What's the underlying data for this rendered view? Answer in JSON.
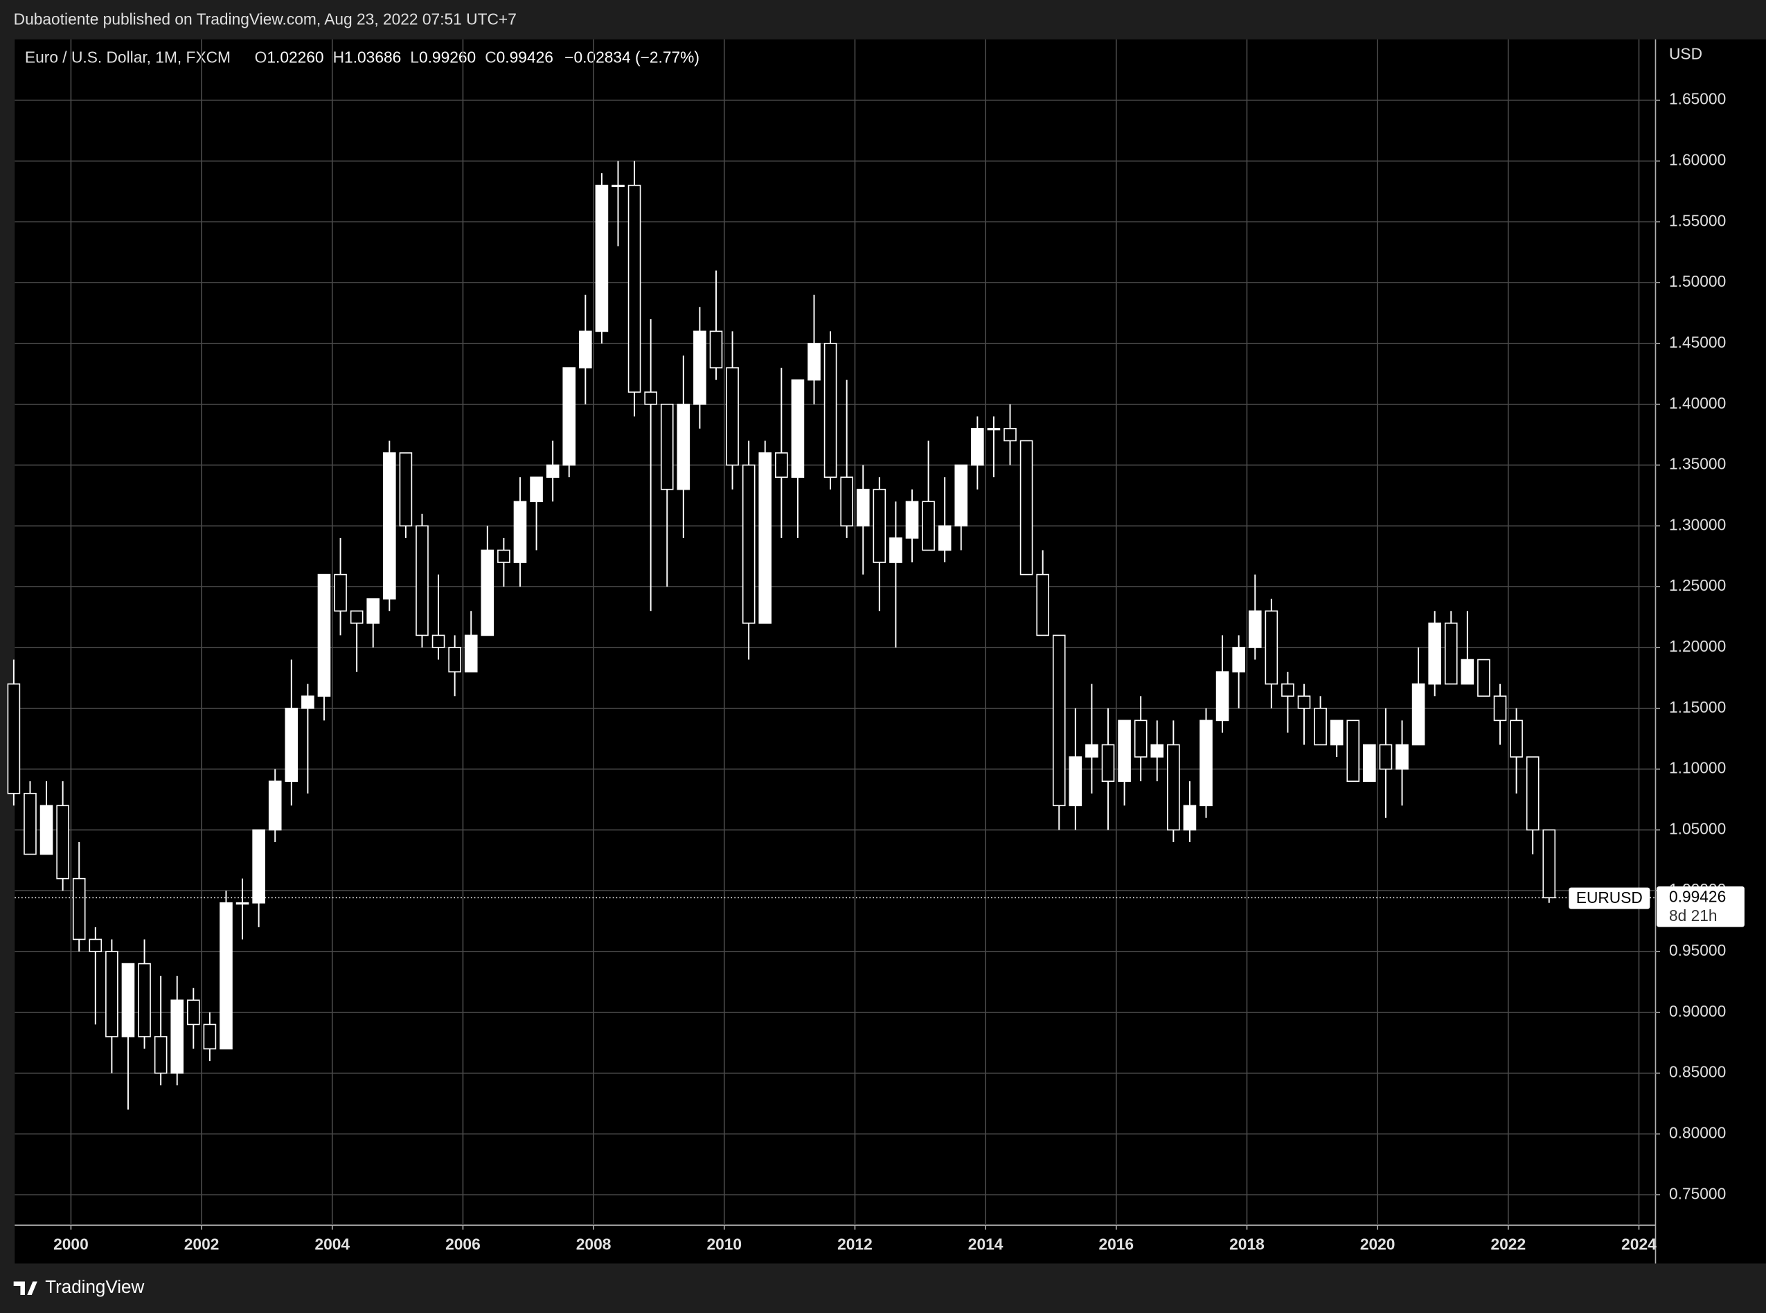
{
  "header": {
    "publisher": "Dubaotiente published on TradingView.com, Aug 23, 2022 07:51 UTC+7",
    "symbol": "Euro / U.S. Dollar, 1M, FXCM",
    "ohlc": [
      {
        "label": "O",
        "value": "1.02260"
      },
      {
        "label": "H",
        "value": "1.03686"
      },
      {
        "label": "L",
        "value": "0.99260"
      },
      {
        "label": "C",
        "value": "0.99426"
      }
    ],
    "change": "−0.02834 (−2.77%)"
  },
  "footer": {
    "brand": "TradingView"
  },
  "chart_data": {
    "type": "candlestick",
    "currency": "USD",
    "symbol": "EURUSD",
    "countdown": "8d 21h",
    "last_price": 0.99426,
    "color": "#ffffff",
    "grid": true,
    "xlim": [
      1999.14,
      2024.22
    ],
    "xticks": [
      2000,
      2002,
      2004,
      2006,
      2008,
      2010,
      2012,
      2014,
      2016,
      2018,
      2020,
      2022,
      2024
    ],
    "ylim": [
      0.725,
      1.7
    ],
    "yticks": [
      {
        "value": 0.75,
        "label": "0.75000"
      },
      {
        "value": 0.8,
        "label": "0.80000"
      },
      {
        "value": 0.85,
        "label": "0.85000"
      },
      {
        "value": 0.9,
        "label": "0.90000"
      },
      {
        "value": 0.95,
        "label": "0.95000"
      },
      {
        "value": 1.0,
        "label": "1.00000"
      },
      {
        "value": 1.05,
        "label": "1.05000"
      },
      {
        "value": 1.1,
        "label": "1.10000"
      },
      {
        "value": 1.15,
        "label": "1.15000"
      },
      {
        "value": 1.2,
        "label": "1.20000"
      },
      {
        "value": 1.25,
        "label": "1.25000"
      },
      {
        "value": 1.3,
        "label": "1.30000"
      },
      {
        "value": 1.35,
        "label": "1.35000"
      },
      {
        "value": 1.4,
        "label": "1.40000"
      },
      {
        "value": 1.45,
        "label": "1.45000"
      },
      {
        "value": 1.5,
        "label": "1.50000"
      },
      {
        "value": 1.55,
        "label": "1.55000"
      },
      {
        "value": 1.6,
        "label": "1.60000"
      },
      {
        "value": 1.65,
        "label": "1.65000"
      }
    ],
    "x": [
      1999.125,
      1999.375,
      1999.625,
      1999.875,
      2000.125,
      2000.375,
      2000.625,
      2000.875,
      2001.125,
      2001.375,
      2001.625,
      2001.875,
      2002.125,
      2002.375,
      2002.625,
      2002.875,
      2003.125,
      2003.375,
      2003.625,
      2003.875,
      2004.125,
      2004.375,
      2004.625,
      2004.875,
      2005.125,
      2005.375,
      2005.625,
      2005.875,
      2006.125,
      2006.375,
      2006.625,
      2006.875,
      2007.125,
      2007.375,
      2007.625,
      2007.875,
      2008.125,
      2008.375,
      2008.625,
      2008.875,
      2009.125,
      2009.375,
      2009.625,
      2009.875,
      2010.125,
      2010.375,
      2010.625,
      2010.875,
      2011.125,
      2011.375,
      2011.625,
      2011.875,
      2012.125,
      2012.375,
      2012.625,
      2012.875,
      2013.125,
      2013.375,
      2013.625,
      2013.875,
      2014.125,
      2014.375,
      2014.625,
      2014.875,
      2015.125,
      2015.375,
      2015.625,
      2015.875,
      2016.125,
      2016.375,
      2016.625,
      2016.875,
      2017.125,
      2017.375,
      2017.625,
      2017.875,
      2018.125,
      2018.375,
      2018.625,
      2018.875,
      2019.125,
      2019.375,
      2019.625,
      2019.875,
      2020.125,
      2020.375,
      2020.625,
      2020.875,
      2021.125,
      2021.375,
      2021.625,
      2021.875,
      2022.125,
      2022.375,
      2022.625
    ],
    "open": [
      1.17,
      1.08,
      1.03,
      1.07,
      1.01,
      0.96,
      0.95,
      0.88,
      0.94,
      0.88,
      0.85,
      0.91,
      0.89,
      0.87,
      0.99,
      0.99,
      1.05,
      1.09,
      1.15,
      1.16,
      1.26,
      1.23,
      1.22,
      1.24,
      1.36,
      1.3,
      1.21,
      1.2,
      1.18,
      1.21,
      1.28,
      1.27,
      1.32,
      1.34,
      1.35,
      1.43,
      1.46,
      1.58,
      1.58,
      1.41,
      1.4,
      1.33,
      1.4,
      1.46,
      1.43,
      1.35,
      1.22,
      1.36,
      1.34,
      1.42,
      1.45,
      1.34,
      1.3,
      1.33,
      1.27,
      1.29,
      1.32,
      1.28,
      1.3,
      1.35,
      1.38,
      1.38,
      1.37,
      1.26,
      1.21,
      1.07,
      1.11,
      1.12,
      1.09,
      1.14,
      1.11,
      1.12,
      1.05,
      1.07,
      1.14,
      1.18,
      1.2,
      1.23,
      1.17,
      1.16,
      1.15,
      1.12,
      1.14,
      1.09,
      1.12,
      1.1,
      1.12,
      1.17,
      1.22,
      1.17,
      1.19,
      1.16,
      1.14,
      1.11,
      1.05
    ],
    "high": [
      1.19,
      1.09,
      1.09,
      1.09,
      1.04,
      0.97,
      0.96,
      0.94,
      0.96,
      0.93,
      0.93,
      0.92,
      0.9,
      1.0,
      1.01,
      1.05,
      1.1,
      1.19,
      1.17,
      1.26,
      1.29,
      1.23,
      1.24,
      1.37,
      1.36,
      1.31,
      1.26,
      1.21,
      1.23,
      1.3,
      1.29,
      1.34,
      1.34,
      1.37,
      1.43,
      1.49,
      1.59,
      1.6,
      1.6,
      1.47,
      1.4,
      1.44,
      1.48,
      1.51,
      1.46,
      1.37,
      1.37,
      1.43,
      1.42,
      1.49,
      1.46,
      1.42,
      1.35,
      1.34,
      1.32,
      1.33,
      1.37,
      1.34,
      1.35,
      1.39,
      1.39,
      1.4,
      1.37,
      1.28,
      1.21,
      1.15,
      1.17,
      1.15,
      1.14,
      1.16,
      1.14,
      1.14,
      1.09,
      1.15,
      1.21,
      1.21,
      1.26,
      1.24,
      1.18,
      1.17,
      1.16,
      1.14,
      1.14,
      1.12,
      1.15,
      1.14,
      1.2,
      1.23,
      1.23,
      1.23,
      1.19,
      1.17,
      1.15,
      1.11,
      1.05
    ],
    "low": [
      1.07,
      1.03,
      1.03,
      1.0,
      0.95,
      0.89,
      0.85,
      0.82,
      0.87,
      0.84,
      0.84,
      0.87,
      0.86,
      0.87,
      0.96,
      0.97,
      1.04,
      1.07,
      1.08,
      1.14,
      1.21,
      1.18,
      1.2,
      1.23,
      1.29,
      1.2,
      1.19,
      1.16,
      1.18,
      1.21,
      1.25,
      1.25,
      1.28,
      1.32,
      1.34,
      1.4,
      1.45,
      1.53,
      1.39,
      1.23,
      1.25,
      1.29,
      1.38,
      1.42,
      1.33,
      1.19,
      1.22,
      1.29,
      1.29,
      1.4,
      1.33,
      1.29,
      1.26,
      1.23,
      1.2,
      1.27,
      1.28,
      1.27,
      1.28,
      1.33,
      1.34,
      1.35,
      1.26,
      1.21,
      1.05,
      1.05,
      1.08,
      1.05,
      1.07,
      1.09,
      1.09,
      1.04,
      1.04,
      1.06,
      1.13,
      1.15,
      1.19,
      1.15,
      1.13,
      1.12,
      1.12,
      1.11,
      1.09,
      1.09,
      1.06,
      1.07,
      1.12,
      1.16,
      1.17,
      1.17,
      1.16,
      1.12,
      1.08,
      1.03,
      0.99
    ],
    "close": [
      1.08,
      1.03,
      1.07,
      1.01,
      0.96,
      0.95,
      0.88,
      0.94,
      0.88,
      0.85,
      0.91,
      0.89,
      0.87,
      0.99,
      0.99,
      1.05,
      1.09,
      1.15,
      1.16,
      1.26,
      1.23,
      1.22,
      1.24,
      1.36,
      1.3,
      1.21,
      1.2,
      1.18,
      1.21,
      1.28,
      1.27,
      1.32,
      1.34,
      1.35,
      1.43,
      1.46,
      1.58,
      1.58,
      1.41,
      1.4,
      1.33,
      1.4,
      1.46,
      1.43,
      1.35,
      1.22,
      1.36,
      1.34,
      1.42,
      1.45,
      1.34,
      1.3,
      1.33,
      1.27,
      1.29,
      1.32,
      1.28,
      1.3,
      1.35,
      1.38,
      1.38,
      1.37,
      1.26,
      1.21,
      1.07,
      1.11,
      1.12,
      1.09,
      1.14,
      1.11,
      1.12,
      1.05,
      1.07,
      1.14,
      1.18,
      1.2,
      1.23,
      1.17,
      1.16,
      1.15,
      1.12,
      1.14,
      1.09,
      1.12,
      1.1,
      1.12,
      1.17,
      1.22,
      1.17,
      1.19,
      1.16,
      1.14,
      1.11,
      1.05,
      0.99426
    ]
  }
}
